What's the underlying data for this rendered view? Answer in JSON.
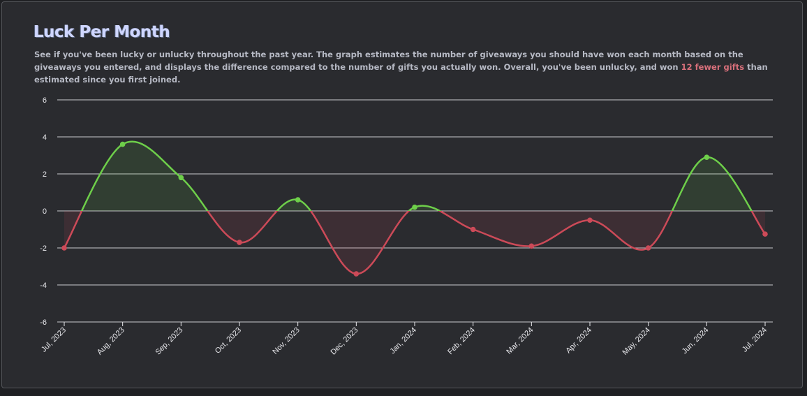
{
  "header": {
    "title": "Luck Per Month",
    "description_before": "See if you've been lucky or unlucky throughout the past year. The graph estimates the number of giveaways you should have won each month based on the giveaways you entered, and displays the difference compared to the number of gifts you actually won. Overall, you've been unlucky, and won ",
    "description_highlight": "12 fewer gifts",
    "description_after": " than estimated since you first joined."
  },
  "colors": {
    "positive": "#6ecf4a",
    "negative": "#cc4a58",
    "highlight": "#d9707b",
    "grid": "#e8e8ec"
  },
  "chart_data": {
    "type": "area",
    "categories": [
      "Jul, 2023",
      "Aug, 2023",
      "Sep, 2023",
      "Oct, 2023",
      "Nov, 2023",
      "Dec, 2023",
      "Jan, 2024",
      "Feb, 2024",
      "Mar, 2024",
      "Apr, 2024",
      "May, 2024",
      "Jun, 2024",
      "Jul, 2024"
    ],
    "values": [
      -2,
      3.6,
      1.8,
      -1.7,
      0.6,
      -3.4,
      0.2,
      -1,
      -1.9,
      -0.5,
      -2,
      2.9,
      -1.25
    ],
    "ylim": [
      -6,
      6
    ],
    "yticks": [
      -6,
      -4,
      -2,
      0,
      2,
      4,
      6
    ],
    "grid": true,
    "legend": "none",
    "xlabel": "",
    "ylabel": ""
  }
}
